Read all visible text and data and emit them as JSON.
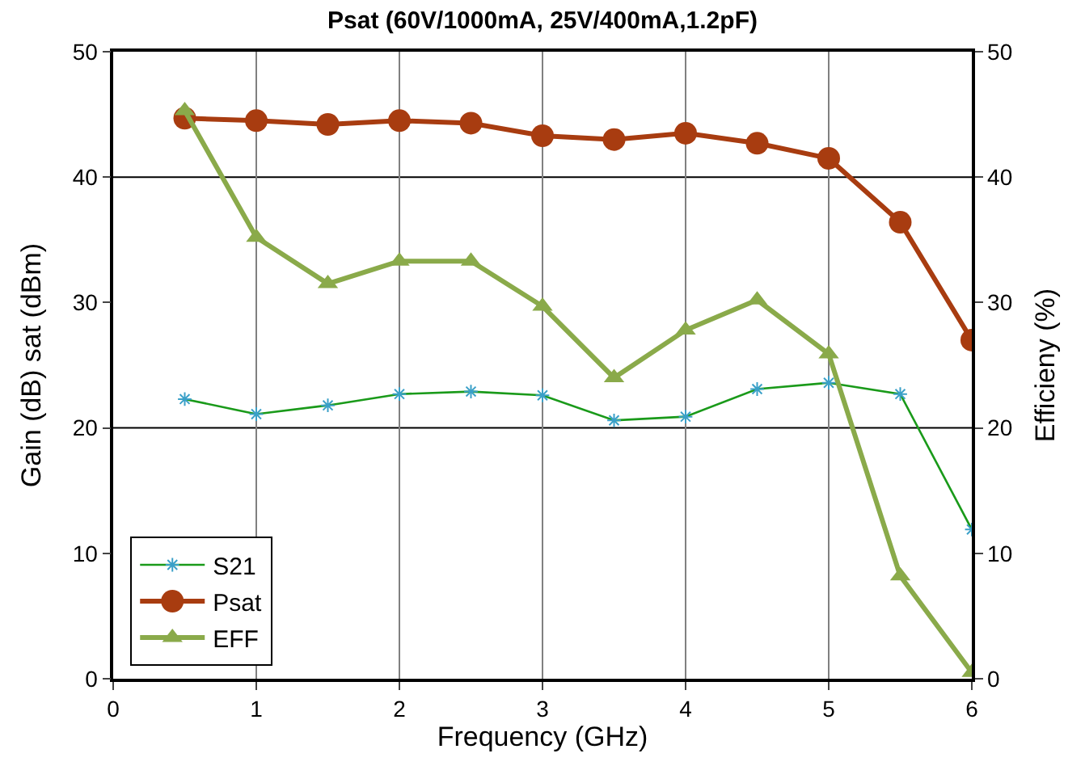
{
  "chart_data": {
    "type": "line",
    "title": "Psat (60V/1000mA, 25V/400mA,1.2pF)",
    "xlabel": "Frequency (GHz)",
    "ylabel": "Gain (dB) sat (dBm)",
    "y2label": "Efficieny (%)",
    "x": [
      0.5,
      1,
      1.5,
      2,
      2.5,
      3,
      3.5,
      4,
      4.5,
      5,
      5.5,
      6
    ],
    "series": [
      {
        "name": "S21",
        "color": "#1a9a1a",
        "marker": "cross",
        "values": [
          22.3,
          21.1,
          21.8,
          22.7,
          22.9,
          22.6,
          20.6,
          20.9,
          23.1,
          23.6,
          22.7,
          11.9
        ]
      },
      {
        "name": "Psat",
        "color": "#a83c10",
        "marker": "circle",
        "values": [
          44.7,
          44.5,
          44.2,
          44.5,
          44.3,
          43.3,
          43.0,
          43.5,
          42.7,
          41.5,
          36.4,
          27.0
        ]
      },
      {
        "name": "EFF",
        "color": "#8aaa4a",
        "marker": "triangle",
        "axis": "y2",
        "values": [
          45.3,
          35.2,
          31.5,
          33.3,
          33.3,
          29.7,
          24.0,
          27.8,
          30.2,
          25.9,
          8.2,
          0.5
        ]
      }
    ],
    "xlim": [
      0,
      6
    ],
    "xticks": [
      0,
      1,
      2,
      3,
      4,
      5,
      6
    ],
    "ylim": [
      0,
      50
    ],
    "yticks": [
      0,
      10,
      20,
      30,
      40,
      50
    ],
    "y2lim": [
      0,
      50
    ],
    "y2ticks": [
      0,
      10,
      20,
      30,
      40,
      50
    ],
    "grid": "x",
    "ref_lines": [
      {
        "axis": "y",
        "value": 20,
        "color": "#000000"
      },
      {
        "axis": "y",
        "value": 40,
        "color": "#000000"
      }
    ],
    "legend": "bottom left"
  }
}
